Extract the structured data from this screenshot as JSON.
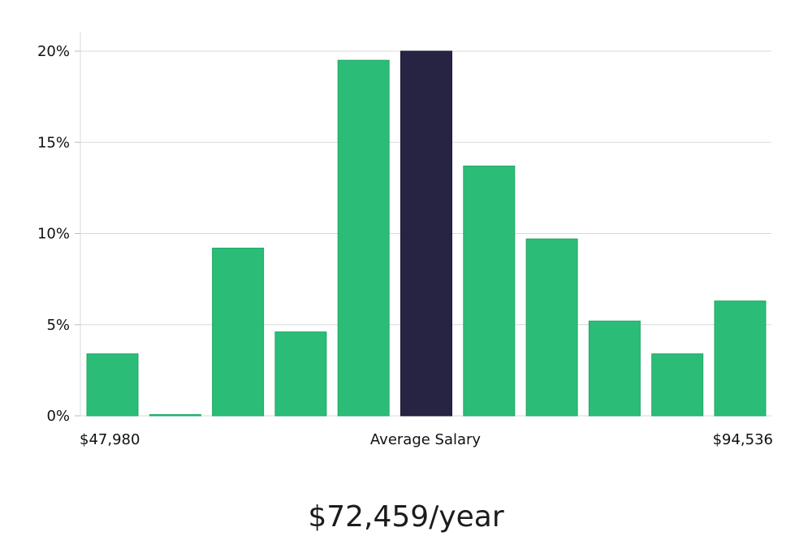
{
  "chart_data": {
    "type": "bar",
    "title": "",
    "xlabel": "Average Salary",
    "ylabel": "",
    "x_range_labels": {
      "min": "$47,980",
      "max": "$94,536"
    },
    "ylim": [
      0,
      20
    ],
    "yticks": [
      0,
      5,
      10,
      15,
      20
    ],
    "ytick_labels": [
      "0%",
      "5%",
      "10%",
      "15%",
      "20%"
    ],
    "values": [
      3.4,
      0.05,
      9.2,
      4.6,
      19.5,
      20.0,
      13.7,
      9.7,
      5.2,
      3.4,
      6.3
    ],
    "highlight_index": 5,
    "grid": true
  },
  "summary": {
    "salary_text": "$72,459/year"
  },
  "colors": {
    "bar": "#2bbd77",
    "highlight_bar": "#272443",
    "text": "#111111"
  }
}
